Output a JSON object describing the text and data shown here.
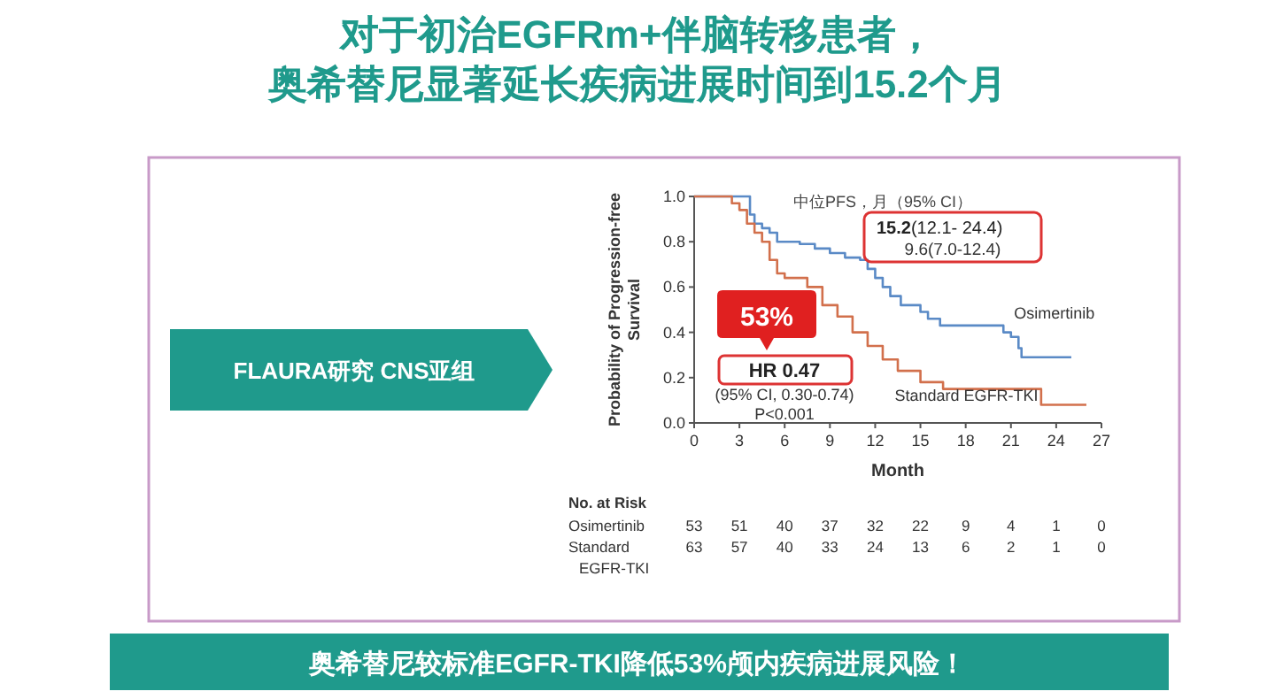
{
  "chart_data": {
    "type": "step",
    "title": "对于初治EGFRm+伴脑转移患者，",
    "subtitle": "奥希替尼显著延长疾病进展时间到15.2个月",
    "xlabel": "Month",
    "ylabel": "Probability of Progression-free\nSurvival",
    "xlim": [
      0,
      27
    ],
    "xticks": [
      0,
      3,
      6,
      9,
      12,
      15,
      18,
      21,
      24,
      27
    ],
    "ylim": [
      0,
      1
    ],
    "yticks": [
      {
        "value": 0,
        "label": "0.0"
      },
      0.2,
      0.4,
      0.6,
      0.8,
      {
        "value": 1,
        "label": "1.0"
      }
    ],
    "grid": false,
    "series": [
      {
        "name": "Osimertinib",
        "color": "#5a8ac6",
        "x": [
          0,
          3.7,
          4,
          4.5,
          5,
          5.5,
          7,
          8,
          9,
          10,
          11,
          11.5,
          12,
          12.5,
          13,
          13.7,
          15,
          15.5,
          16.3,
          20.5,
          21,
          21.5,
          21.7,
          25
        ],
        "values": [
          1,
          0.92,
          0.88,
          0.86,
          0.84,
          0.8,
          0.79,
          0.77,
          0.75,
          0.73,
          0.72,
          0.68,
          0.64,
          0.6,
          0.56,
          0.52,
          0.49,
          0.46,
          0.43,
          0.4,
          0.38,
          0.33,
          0.29,
          0.29
        ]
      },
      {
        "name": "Standard EGFR-TKI",
        "color": "#d2704c",
        "x": [
          0,
          2.5,
          3,
          3.5,
          4,
          4.5,
          5,
          5.5,
          6,
          7.5,
          8.5,
          9.5,
          10.5,
          11.5,
          12.5,
          13.5,
          15,
          16.5,
          23,
          26
        ],
        "values": [
          1,
          0.97,
          0.94,
          0.88,
          0.84,
          0.8,
          0.72,
          0.66,
          0.64,
          0.6,
          0.52,
          0.47,
          0.4,
          0.34,
          0.28,
          0.23,
          0.18,
          0.15,
          0.08,
          0.08
        ]
      }
    ],
    "annotations": [
      "中位PFS，月（95% CI）",
      "15.2",
      "(12.1- 24.4)",
      "9.6(7.0-12.4)",
      "53%",
      "HR 0.47",
      "(95% CI, 0.30-0.74)",
      "P<0.001",
      "FLAURA研究 CNS亚组",
      "奥希替尼较标准EGFR-TKI降低53%颅内疾病进展风险！",
      "No. at Risk",
      "Osimertinib",
      "Standard",
      "EGFR-TKI",
      "53",
      "51",
      "40",
      "37",
      "32",
      "22",
      "9",
      "4",
      "1",
      "0",
      "63",
      "57",
      "40",
      "33",
      "24",
      "13",
      "6",
      "2",
      "1",
      "0"
    ]
  }
}
